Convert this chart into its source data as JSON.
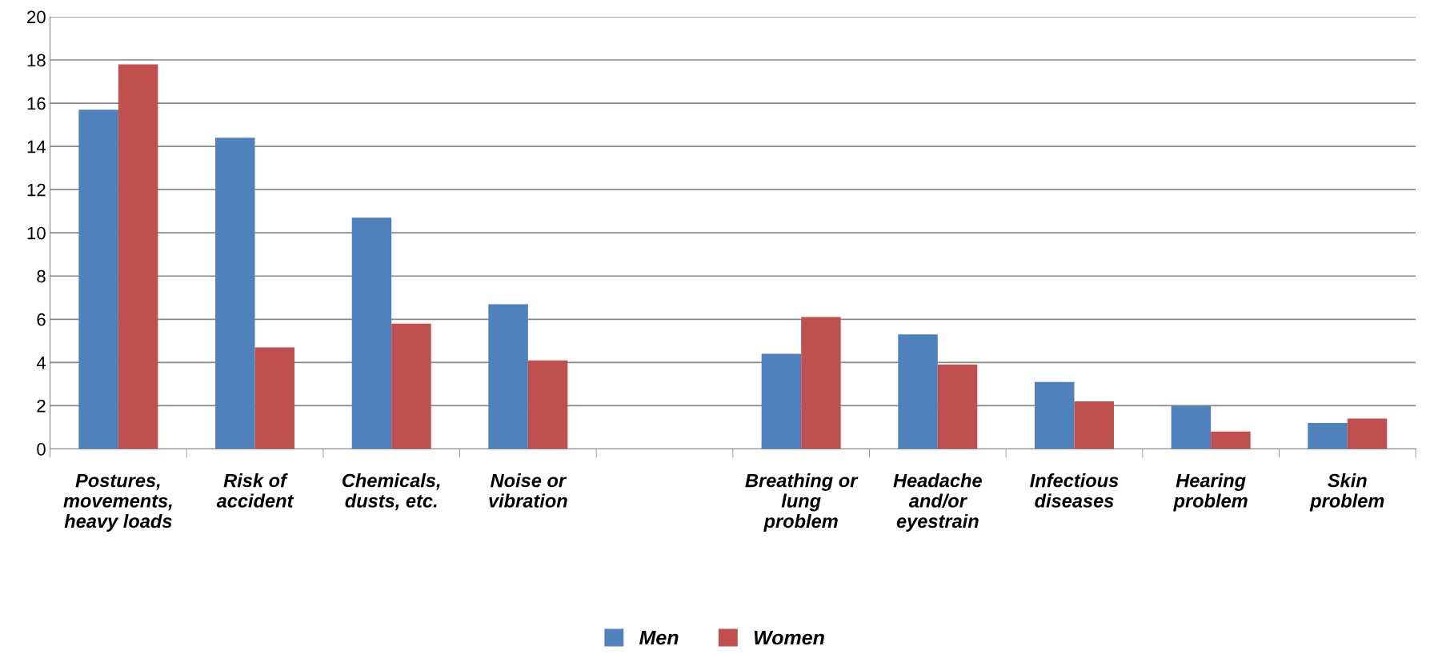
{
  "chart_data": {
    "type": "bar",
    "categories": [
      "Postures,\nmovements,\nheavy loads",
      "Risk of\naccident",
      "Chemicals,\ndusts, etc.",
      "Noise or\nvibration",
      null,
      "Breathing or\nlung\nproblem",
      "Headache\nand/or\neyestrain",
      "Infectious\ndiseases",
      "Hearing\nproblem",
      "Skin\nproblem"
    ],
    "series": [
      {
        "name": "Men",
        "color": "#4f81bd",
        "values": [
          15.7,
          14.4,
          10.7,
          6.7,
          null,
          4.4,
          5.3,
          3.1,
          2.0,
          1.2
        ]
      },
      {
        "name": "Women",
        "color": "#c0504d",
        "values": [
          17.8,
          4.7,
          5.8,
          4.1,
          null,
          6.1,
          3.9,
          2.2,
          0.8,
          1.4
        ]
      }
    ],
    "ylim": [
      0,
      20
    ],
    "yticks": [
      0,
      2,
      4,
      6,
      8,
      10,
      12,
      14,
      16,
      18,
      20
    ],
    "grid": "y",
    "legend": "bottom"
  }
}
